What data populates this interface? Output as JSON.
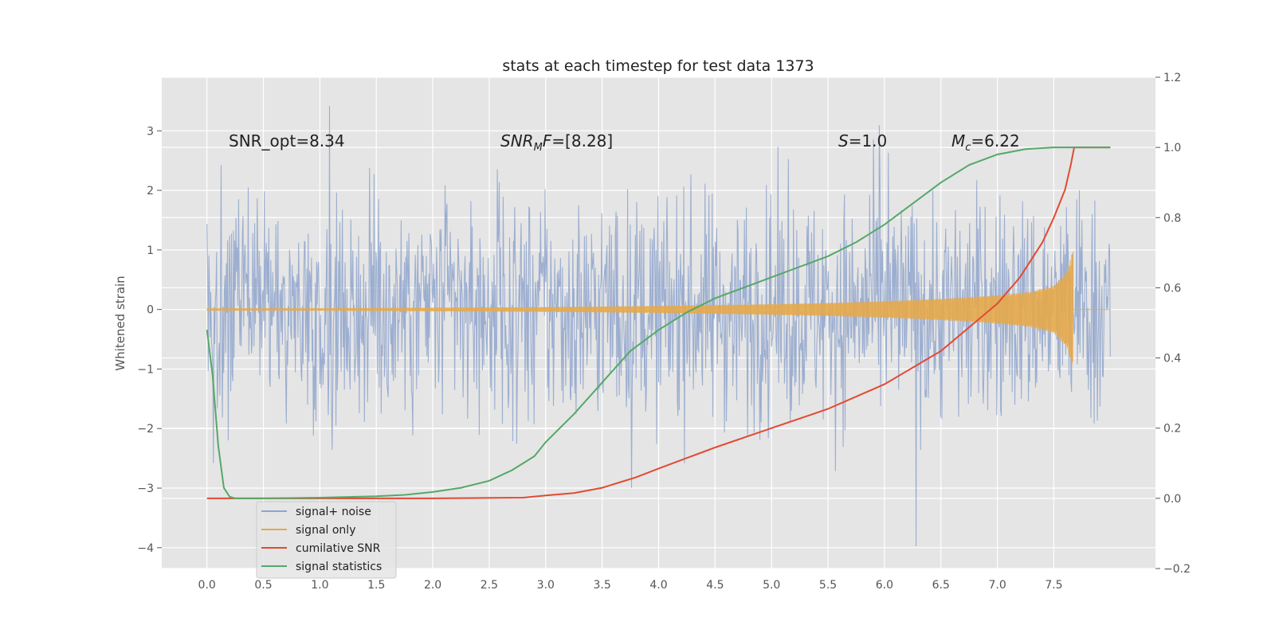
{
  "chart_data": {
    "type": "line",
    "title": "stats at each timestep for test data 1373",
    "ylabel": "Whitened strain",
    "y2label": "",
    "xlim": [
      -0.4,
      8.4
    ],
    "ylim": [
      -4.35,
      3.9
    ],
    "y2lim": [
      -0.2,
      1.2
    ],
    "x_ticks": [
      "0.0",
      "0.5",
      "1.0",
      "1.5",
      "2.0",
      "2.5",
      "3.0",
      "3.5",
      "4.0",
      "4.5",
      "5.0",
      "5.5",
      "6.0",
      "6.5",
      "7.0",
      "7.5"
    ],
    "y_ticks": [
      "3",
      "2",
      "1",
      "0",
      "−1",
      "−2",
      "−3",
      "−4"
    ],
    "y2_ticks": [
      "1.2",
      "1.0",
      "0.8",
      "0.6",
      "0.4",
      "0.2",
      "0.0",
      "−0.2"
    ],
    "grid": true,
    "annotations": [
      {
        "text": "SNR_opt=8.34",
        "x": 0.2,
        "y": 2.8
      },
      {
        "text": "SNR_MF=[8.28]",
        "x": 2.6,
        "y": 2.8
      },
      {
        "text": "S=1.0",
        "x": 5.6,
        "y": 2.8
      },
      {
        "text": "M_c=6.22",
        "x": 6.6,
        "y": 2.8
      }
    ],
    "legend": {
      "position": "lower-left",
      "entries": [
        "signal+ noise",
        "signal only",
        "cumilative SNR",
        "signal statistics"
      ]
    },
    "series": [
      {
        "name": "signal+ noise",
        "axis": "left",
        "color": "#8fa5cc",
        "kind": "noise",
        "x_range": [
          0.0,
          8.0
        ],
        "amplitude_typical": 1.6,
        "min": -4.0,
        "max": 3.6
      },
      {
        "name": "signal only",
        "axis": "left",
        "color": "#e6a84a",
        "kind": "chirp",
        "x_range": [
          0.0,
          7.67
        ],
        "envelope_x": [
          0.0,
          1.0,
          2.0,
          3.0,
          4.0,
          5.0,
          5.5,
          6.0,
          6.5,
          7.0,
          7.3,
          7.5,
          7.62,
          7.67
        ],
        "envelope_y": [
          0.02,
          0.02,
          0.03,
          0.04,
          0.06,
          0.09,
          0.11,
          0.14,
          0.18,
          0.24,
          0.3,
          0.4,
          0.65,
          1.0
        ]
      },
      {
        "name": "cumilative SNR",
        "axis": "right",
        "color": "#e24a33",
        "x": [
          0.0,
          1.0,
          2.0,
          2.8,
          3.0,
          3.25,
          3.5,
          3.65,
          3.8,
          4.0,
          4.25,
          4.5,
          5.0,
          5.5,
          6.0,
          6.5,
          7.0,
          7.2,
          7.4,
          7.5,
          7.6,
          7.65,
          7.68,
          7.7,
          8.0
        ],
        "y": [
          0.0,
          0.0,
          0.0,
          0.002,
          0.008,
          0.015,
          0.03,
          0.045,
          0.06,
          0.085,
          0.115,
          0.145,
          0.2,
          0.255,
          0.325,
          0.42,
          0.555,
          0.63,
          0.73,
          0.8,
          0.88,
          0.95,
          1.0,
          1.0,
          1.0
        ]
      },
      {
        "name": "signal statistics",
        "axis": "right",
        "color": "#55a868",
        "x": [
          0.0,
          0.05,
          0.1,
          0.15,
          0.2,
          0.25,
          0.3,
          0.5,
          1.0,
          1.5,
          1.75,
          2.0,
          2.25,
          2.5,
          2.7,
          2.9,
          3.0,
          3.25,
          3.5,
          3.75,
          4.0,
          4.25,
          4.5,
          4.75,
          5.0,
          5.25,
          5.5,
          5.75,
          6.0,
          6.25,
          6.5,
          6.75,
          7.0,
          7.25,
          7.5,
          7.75,
          8.0
        ],
        "y": [
          0.48,
          0.35,
          0.15,
          0.03,
          0.005,
          0.0,
          0.0,
          0.0,
          0.002,
          0.006,
          0.01,
          0.018,
          0.03,
          0.05,
          0.08,
          0.12,
          0.16,
          0.24,
          0.33,
          0.42,
          0.48,
          0.53,
          0.57,
          0.6,
          0.63,
          0.66,
          0.69,
          0.73,
          0.78,
          0.84,
          0.9,
          0.95,
          0.98,
          0.995,
          1.0,
          1.0,
          1.0
        ]
      }
    ]
  }
}
